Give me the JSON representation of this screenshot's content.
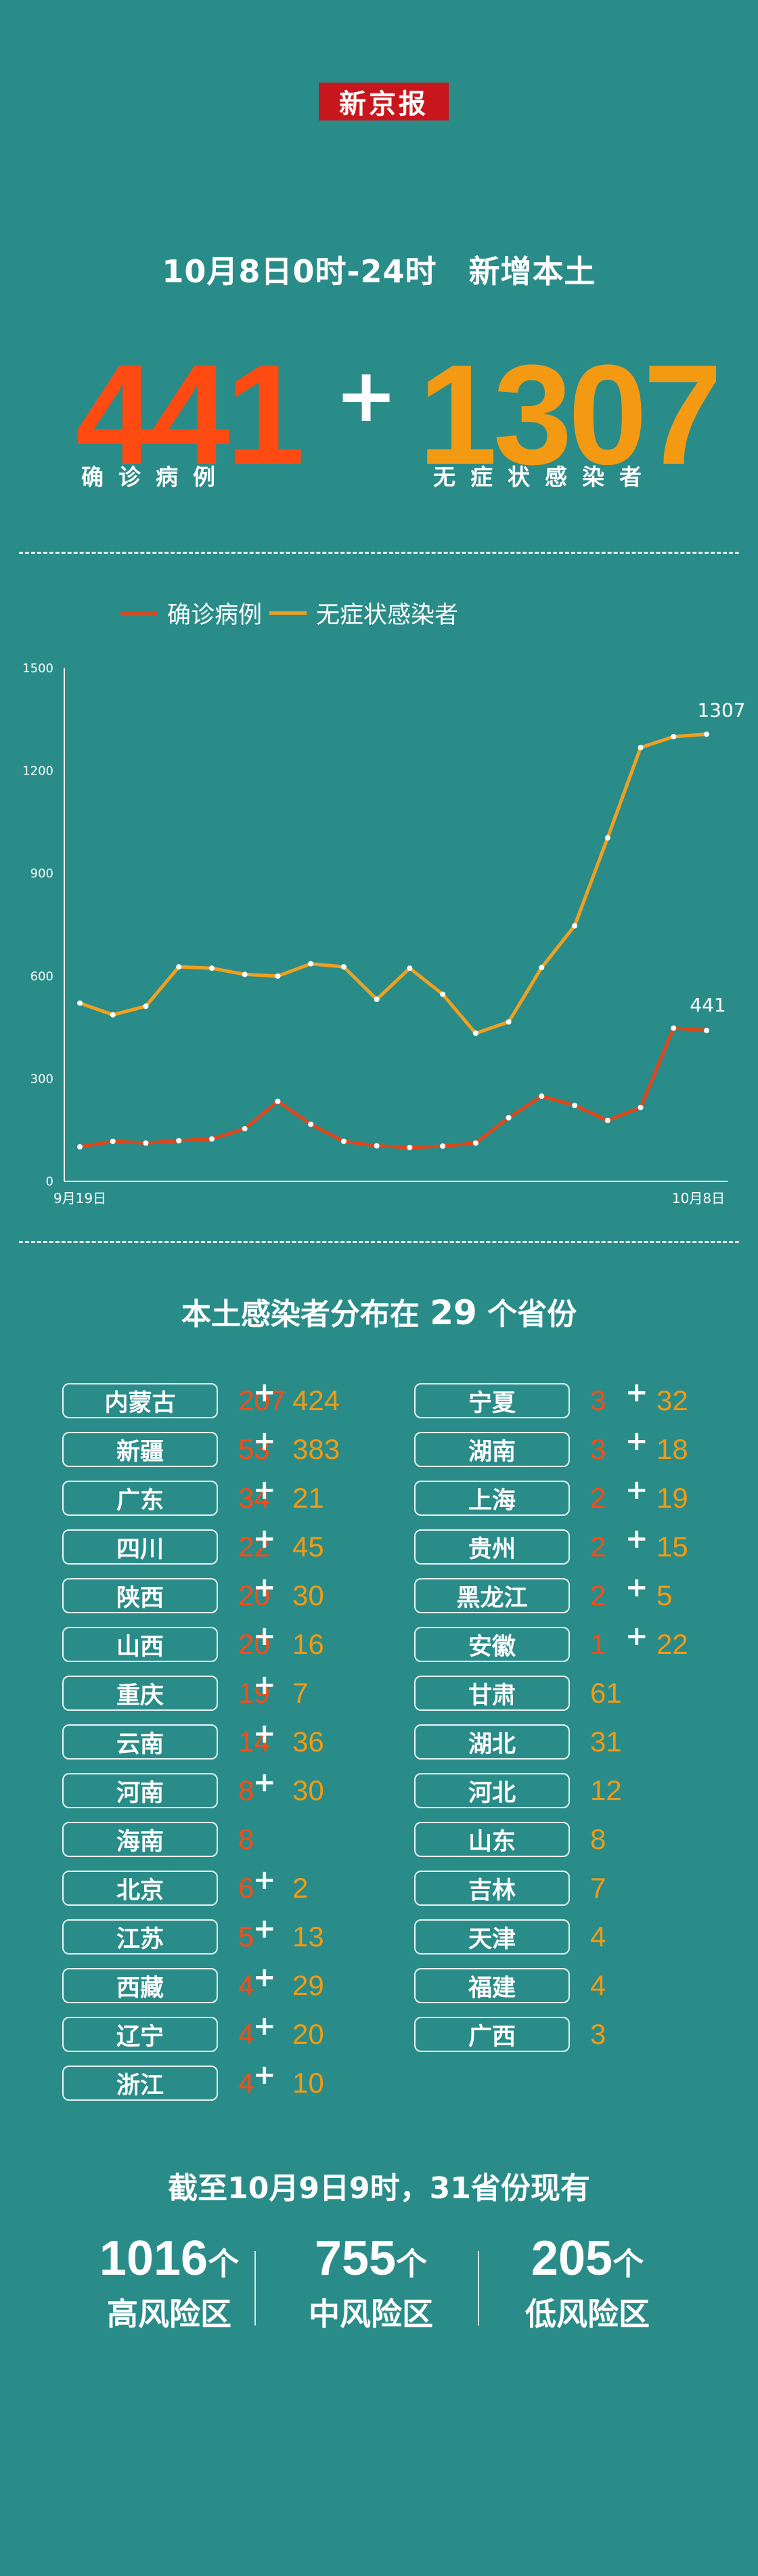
{
  "logo": "新京报",
  "header": {
    "subtitle": "10月8日0时-24时　新增本土",
    "confirmed": "441",
    "confirmed_label": "确诊病例",
    "plus": "+",
    "asymptomatic": "1307",
    "asymptomatic_label": "无症状感染者"
  },
  "colors": {
    "background": "#2a8c89",
    "confirmed": "#ff4a12",
    "asymptomatic": "#f39a12",
    "confirmed_line": "#e0471a",
    "asymptomatic_line": "#f0a020",
    "logo_bg": "#c7171d"
  },
  "chart_data": {
    "type": "line",
    "legend_position": "top",
    "ylim": [
      0,
      1500
    ],
    "yticks": [
      "0",
      "300",
      "600",
      "900",
      "1200",
      "1500"
    ],
    "xtick_labels": [
      "9月19日",
      "10月8日"
    ],
    "end_labels": [
      "441",
      "1307"
    ],
    "grid": false,
    "series": [
      {
        "name": "确诊病例",
        "color": "#e0471a",
        "values": [
          101,
          117,
          112,
          119,
          124,
          154,
          234,
          167,
          117,
          104,
          99,
          103,
          112,
          186,
          249,
          222,
          178,
          216,
          448,
          441
        ]
      },
      {
        "name": "无症状感染者",
        "color": "#f0a020",
        "values": [
          521,
          487,
          512,
          627,
          623,
          605,
          600,
          636,
          627,
          532,
          623,
          547,
          433,
          466,
          625,
          747,
          1004,
          1268,
          1300,
          1307
        ]
      }
    ]
  },
  "provinces_section": {
    "title_pre": "本土感染者分布在",
    "count": "29",
    "title_post": "个省份",
    "plus": "+",
    "left": [
      {
        "name": "内蒙古",
        "confirmed": "207",
        "asymptomatic": "424"
      },
      {
        "name": "新疆",
        "confirmed": "53",
        "asymptomatic": "383"
      },
      {
        "name": "广东",
        "confirmed": "34",
        "asymptomatic": "21"
      },
      {
        "name": "四川",
        "confirmed": "22",
        "asymptomatic": "45"
      },
      {
        "name": "陕西",
        "confirmed": "20",
        "asymptomatic": "30"
      },
      {
        "name": "山西",
        "confirmed": "20",
        "asymptomatic": "16"
      },
      {
        "name": "重庆",
        "confirmed": "19",
        "asymptomatic": "7"
      },
      {
        "name": "云南",
        "confirmed": "14",
        "asymptomatic": "36"
      },
      {
        "name": "河南",
        "confirmed": "8",
        "asymptomatic": "30"
      },
      {
        "name": "海南",
        "confirmed": "8",
        "asymptomatic": ""
      },
      {
        "name": "北京",
        "confirmed": "6",
        "asymptomatic": "2"
      },
      {
        "name": "江苏",
        "confirmed": "5",
        "asymptomatic": "13"
      },
      {
        "name": "西藏",
        "confirmed": "4",
        "asymptomatic": "29"
      },
      {
        "name": "辽宁",
        "confirmed": "4",
        "asymptomatic": "20"
      },
      {
        "name": "浙江",
        "confirmed": "4",
        "asymptomatic": "10"
      }
    ],
    "right": [
      {
        "name": "宁夏",
        "confirmed": "3",
        "asymptomatic": "32"
      },
      {
        "name": "湖南",
        "confirmed": "3",
        "asymptomatic": "18"
      },
      {
        "name": "上海",
        "confirmed": "2",
        "asymptomatic": "19"
      },
      {
        "name": "贵州",
        "confirmed": "2",
        "asymptomatic": "15"
      },
      {
        "name": "黑龙江",
        "confirmed": "2",
        "asymptomatic": "5"
      },
      {
        "name": "安徽",
        "confirmed": "1",
        "asymptomatic": "22"
      },
      {
        "name": "甘肃",
        "confirmed": "",
        "asymptomatic": "61"
      },
      {
        "name": "湖北",
        "confirmed": "",
        "asymptomatic": "31"
      },
      {
        "name": "河北",
        "confirmed": "",
        "asymptomatic": "12"
      },
      {
        "name": "山东",
        "confirmed": "",
        "asymptomatic": "8"
      },
      {
        "name": "吉林",
        "confirmed": "",
        "asymptomatic": "7"
      },
      {
        "name": "天津",
        "confirmed": "",
        "asymptomatic": "4"
      },
      {
        "name": "福建",
        "confirmed": "",
        "asymptomatic": "4"
      },
      {
        "name": "广西",
        "confirmed": "",
        "asymptomatic": "3"
      }
    ]
  },
  "risk_section": {
    "title": "截至10月9日9时，31省份现有",
    "unit": "个",
    "items": [
      {
        "count": "1016",
        "label": "高风险区"
      },
      {
        "count": "755",
        "label": "中风险区"
      },
      {
        "count": "205",
        "label": "低风险区"
      }
    ]
  }
}
